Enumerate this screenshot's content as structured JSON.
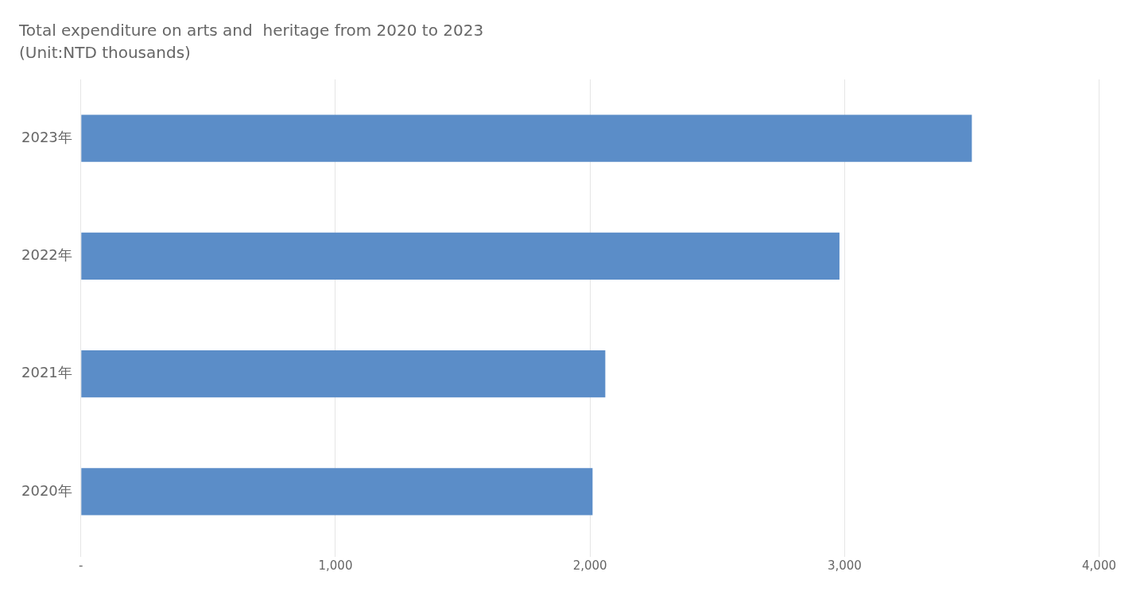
{
  "chart_data": {
    "type": "bar",
    "orientation": "horizontal",
    "title": "Total expenditure on arts and  heritage from 2020 to 2023",
    "subtitle": "(Unit:NTD thousands)",
    "categories": [
      "2023年",
      "2022年",
      "2021年",
      "2020年"
    ],
    "values": [
      3500,
      2980,
      2060,
      2010
    ],
    "color": "#5b8dc8",
    "xlim": [
      0,
      4000
    ],
    "xticks": [
      {
        "value": 0,
        "label": "-"
      },
      {
        "value": 1000,
        "label": "1,000"
      },
      {
        "value": 2000,
        "label": "2,000"
      },
      {
        "value": 3000,
        "label": "3,000"
      },
      {
        "value": 4000,
        "label": "4,000"
      }
    ],
    "grid": true
  }
}
